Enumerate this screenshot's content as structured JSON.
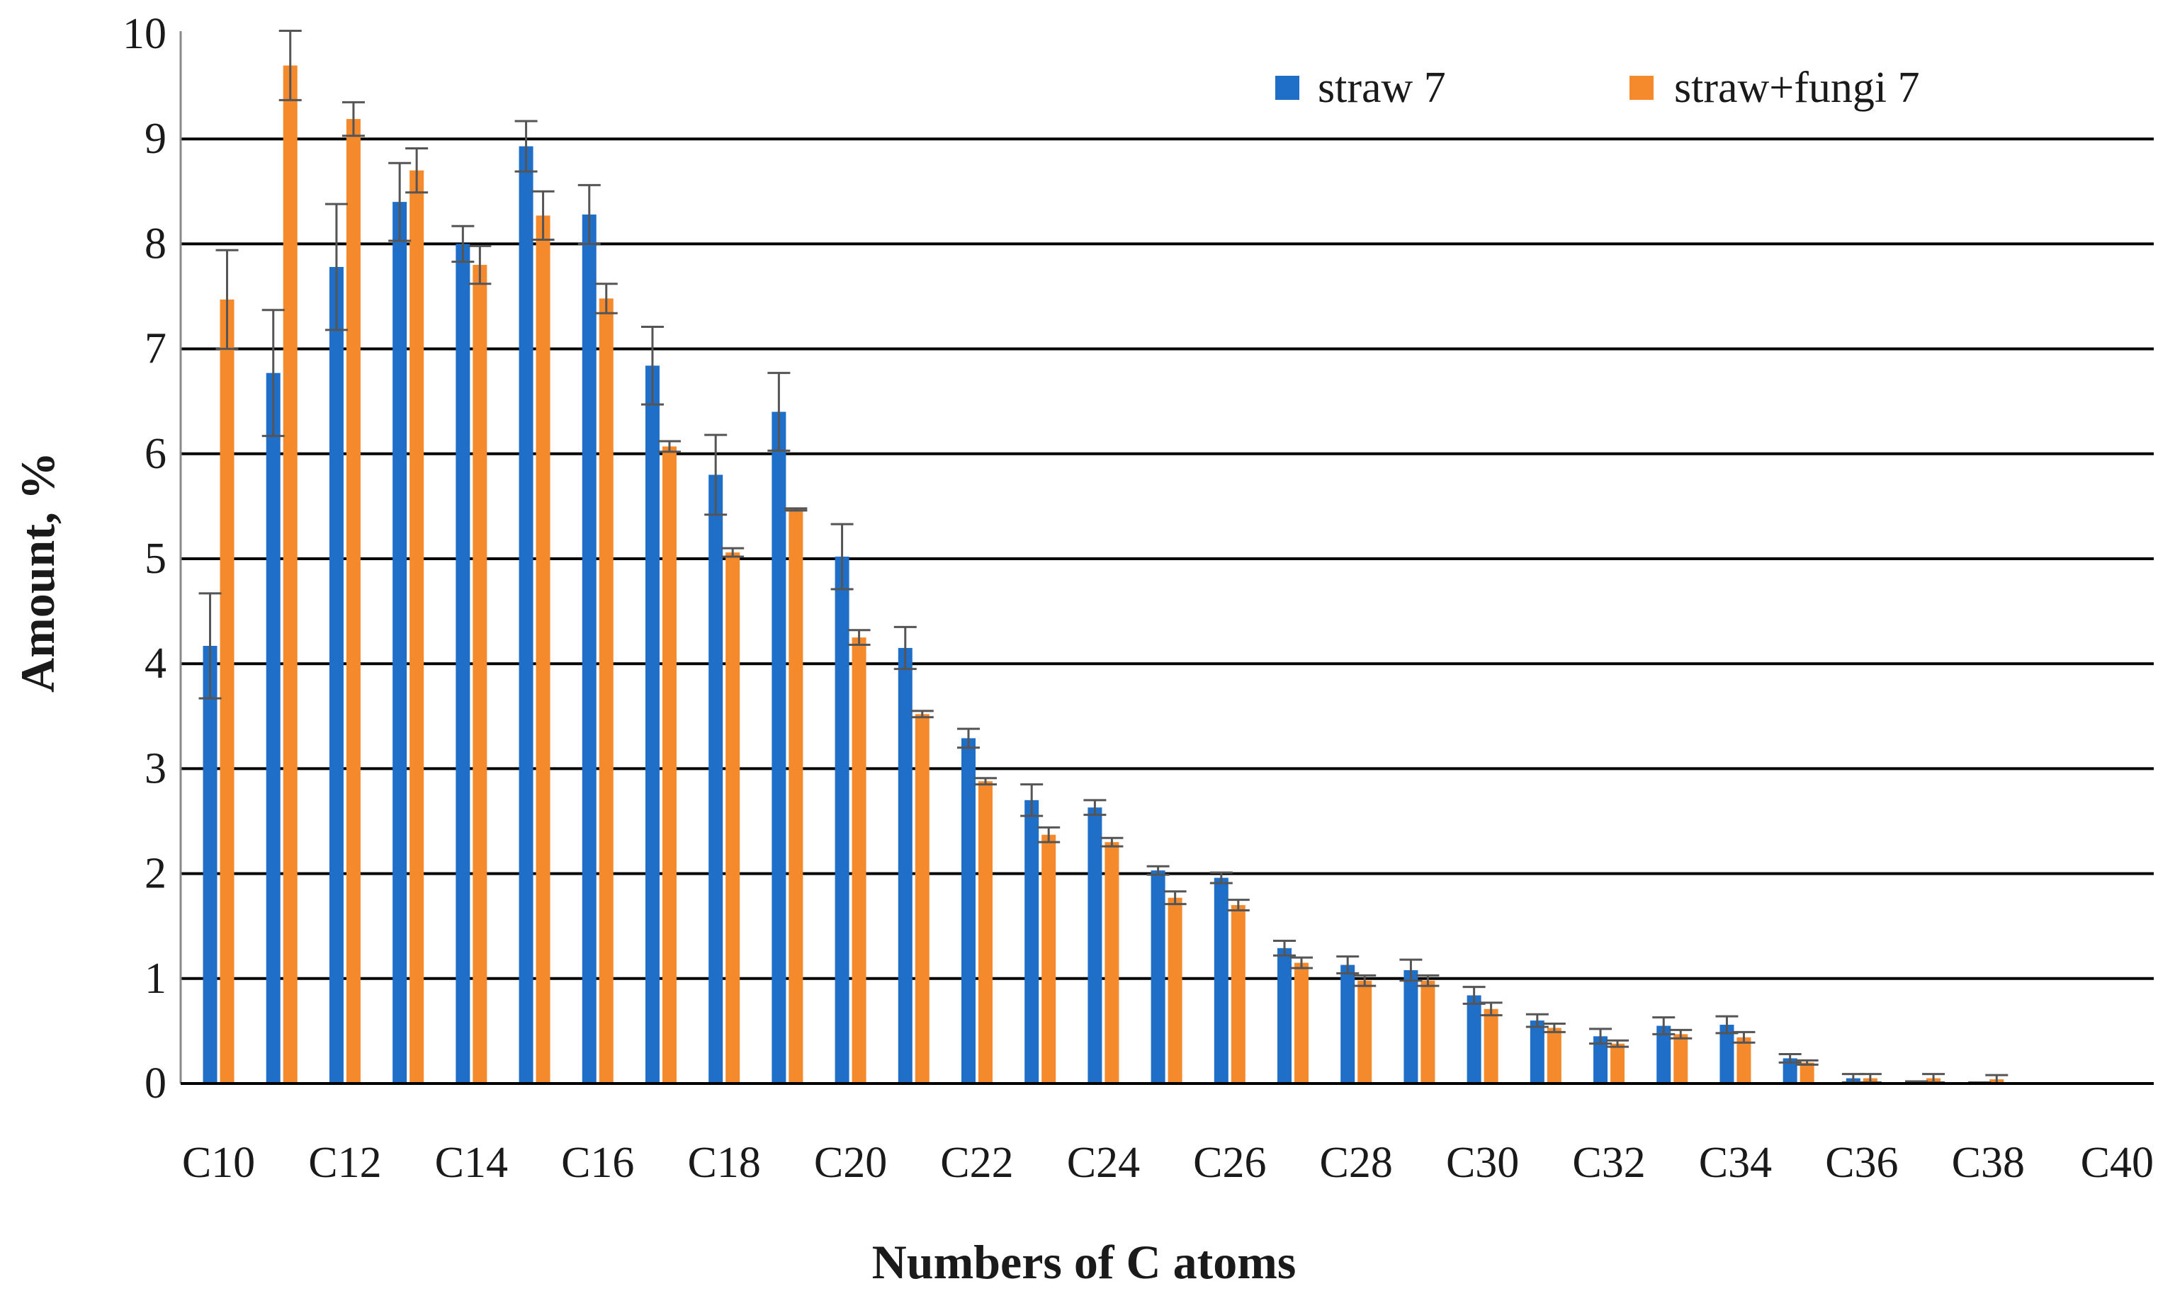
{
  "chart_data": {
    "type": "bar",
    "title": "",
    "xlabel": "Numbers of C atoms",
    "ylabel": "Amount, %",
    "ylim": [
      0,
      10
    ],
    "yticks": [
      0,
      1,
      2,
      3,
      4,
      5,
      6,
      7,
      8,
      9,
      10
    ],
    "grid": "horizontal",
    "legend_position": "top-right",
    "categories": [
      "C10",
      "C11",
      "C12",
      "C13",
      "C14",
      "C15",
      "C16",
      "C17",
      "C18",
      "C19",
      "C20",
      "C21",
      "C22",
      "C23",
      "C24",
      "C25",
      "C26",
      "C27",
      "C28",
      "C29",
      "C30",
      "C31",
      "C32",
      "C33",
      "C34",
      "C35",
      "C36",
      "C37",
      "C38",
      "C39",
      "C40"
    ],
    "xtick_labels": [
      "C10",
      "",
      "C12",
      "",
      "C14",
      "",
      "C16",
      "",
      "C18",
      "",
      "C20",
      "",
      "C22",
      "",
      "C24",
      "",
      "C26",
      "",
      "C28",
      "",
      "C30",
      "",
      "C32",
      "",
      "C34",
      "",
      "C36",
      "",
      "C38",
      "",
      "C40"
    ],
    "series": [
      {
        "name": "straw 7",
        "color": "#1f6fc9",
        "values": [
          4.17,
          6.77,
          7.78,
          8.4,
          8.0,
          8.93,
          8.28,
          6.84,
          5.8,
          6.4,
          5.02,
          4.15,
          3.29,
          2.7,
          2.63,
          2.03,
          1.96,
          1.29,
          1.13,
          1.08,
          0.84,
          0.6,
          0.45,
          0.55,
          0.56,
          0.24,
          0.05,
          0.02,
          0.01,
          0,
          0
        ],
        "errors": [
          0.5,
          0.6,
          0.6,
          0.37,
          0.17,
          0.24,
          0.28,
          0.37,
          0.38,
          0.37,
          0.31,
          0.2,
          0.09,
          0.15,
          0.07,
          0.04,
          0.05,
          0.07,
          0.08,
          0.1,
          0.08,
          0.06,
          0.07,
          0.08,
          0.08,
          0.04,
          0.04,
          0.0,
          0.0,
          0,
          0
        ]
      },
      {
        "name": "straw+fungi 7",
        "color": "#f58a2c",
        "values": [
          7.47,
          9.7,
          9.19,
          8.7,
          7.8,
          8.27,
          7.48,
          6.07,
          5.06,
          5.47,
          4.25,
          3.52,
          2.88,
          2.37,
          2.3,
          1.77,
          1.7,
          1.15,
          0.98,
          0.98,
          0.71,
          0.53,
          0.38,
          0.47,
          0.44,
          0.2,
          0.05,
          0.05,
          0.04,
          0,
          0
        ],
        "errors": [
          0.47,
          0.33,
          0.16,
          0.21,
          0.18,
          0.23,
          0.14,
          0.05,
          0.04,
          0.01,
          0.07,
          0.03,
          0.03,
          0.07,
          0.04,
          0.06,
          0.05,
          0.05,
          0.05,
          0.05,
          0.06,
          0.04,
          0.03,
          0.04,
          0.05,
          0.02,
          0.04,
          0.04,
          0.04,
          0,
          0
        ]
      }
    ]
  }
}
